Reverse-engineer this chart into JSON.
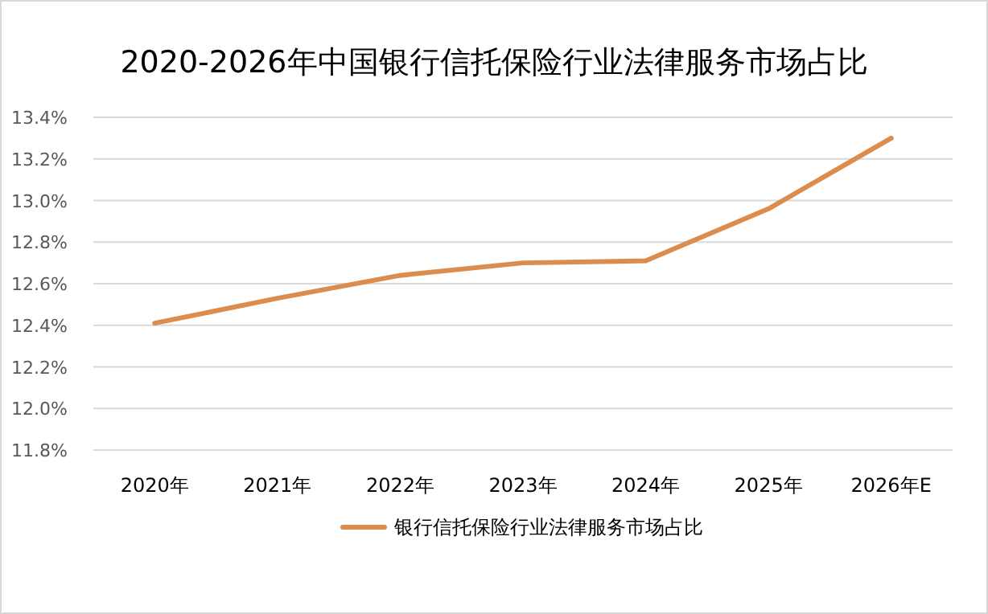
{
  "chart_data": {
    "type": "line",
    "title": "2020-2026年中国银行信托保险行业法律服务市场占比",
    "categories": [
      "2020年",
      "2021年",
      "2022年",
      "2023年",
      "2024年",
      "2025年",
      "2026年E"
    ],
    "series": [
      {
        "name": "银行信托保险行业法律服务市场占比",
        "color": "#dc8c4c",
        "values": [
          12.41,
          12.53,
          12.64,
          12.7,
          12.71,
          12.96,
          13.3
        ]
      }
    ],
    "ylim": [
      11.8,
      13.4
    ],
    "yticks": [
      {
        "value": 11.8,
        "label": "11.8%"
      },
      {
        "value": 12.0,
        "label": "12.0%"
      },
      {
        "value": 12.2,
        "label": "12.2%"
      },
      {
        "value": 12.4,
        "label": "12.4%"
      },
      {
        "value": 12.6,
        "label": "12.6%"
      },
      {
        "value": 12.8,
        "label": "12.8%"
      },
      {
        "value": 13.0,
        "label": "13.0%"
      },
      {
        "value": 13.2,
        "label": "13.2%"
      },
      {
        "value": 13.4,
        "label": "13.4%"
      }
    ],
    "grid": "y",
    "legend": "bottom",
    "marker": "none",
    "line_style": "solid"
  }
}
